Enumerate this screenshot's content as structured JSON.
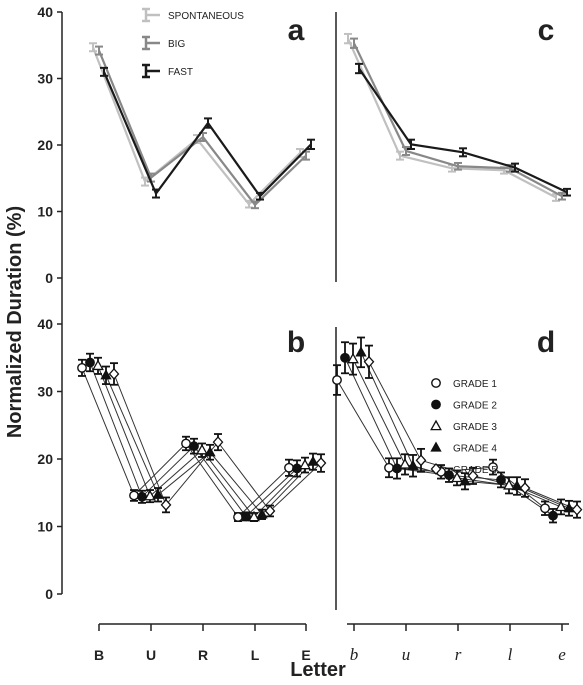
{
  "y_axis_title": "Normalized Duration (%)",
  "x_axis_title": "Letter",
  "chart_data": [
    {
      "panel": "a",
      "type": "line",
      "categories": [
        "B",
        "U",
        "R",
        "L",
        "E"
      ],
      "ylim": [
        0,
        40
      ],
      "yticks": [
        0,
        10,
        20,
        30,
        40
      ],
      "legend_position": "top-left",
      "series": [
        {
          "name": "SPONTANEOUS",
          "color": "#c0c0c0",
          "values": [
            34.7,
            14.5,
            20.9,
            11.1,
            18.8
          ],
          "errors": [
            0.6,
            0.6,
            0.6,
            0.5,
            0.6
          ]
        },
        {
          "name": "BIG",
          "color": "#888888",
          "values": [
            34.2,
            15.1,
            21.2,
            11.0,
            18.4
          ],
          "errors": [
            0.6,
            0.6,
            0.6,
            0.5,
            0.6
          ]
        },
        {
          "name": "FAST",
          "color": "#1a1a1a",
          "values": [
            31.0,
            12.7,
            23.3,
            12.3,
            20.1
          ],
          "errors": [
            0.6,
            0.6,
            0.7,
            0.5,
            0.7
          ]
        }
      ]
    },
    {
      "panel": "c",
      "type": "line",
      "categories": [
        "b",
        "u",
        "r",
        "l",
        "e"
      ],
      "ylim": [
        0,
        40
      ],
      "series": [
        {
          "name": "SPONTANEOUS",
          "color": "#c0c0c0",
          "values": [
            36.0,
            18.4,
            16.5,
            16.2,
            12.1
          ],
          "errors": [
            0.7,
            0.6,
            0.5,
            0.5,
            0.5
          ]
        },
        {
          "name": "BIG",
          "color": "#888888",
          "values": [
            35.3,
            19.1,
            16.8,
            16.5,
            12.3
          ],
          "errors": [
            0.7,
            0.6,
            0.5,
            0.5,
            0.5
          ]
        },
        {
          "name": "FAST",
          "color": "#1a1a1a",
          "values": [
            31.5,
            20.1,
            18.9,
            16.6,
            12.9
          ],
          "errors": [
            0.7,
            0.7,
            0.6,
            0.6,
            0.5
          ]
        }
      ]
    },
    {
      "panel": "b",
      "type": "line",
      "categories": [
        "B",
        "U",
        "R",
        "L",
        "E"
      ],
      "ylim": [
        0,
        40
      ],
      "yticks": [
        0,
        10,
        20,
        30,
        40
      ],
      "series": [
        {
          "name": "GRADE 1",
          "marker": "circle-open",
          "values": [
            33.5,
            14.6,
            22.3,
            11.4,
            18.7
          ],
          "errors": [
            1.2,
            0.8,
            1.0,
            0.6,
            1.2
          ]
        },
        {
          "name": "GRADE 2",
          "marker": "circle-filled",
          "values": [
            34.3,
            14.4,
            21.9,
            11.5,
            18.6
          ],
          "errors": [
            1.3,
            0.9,
            1.1,
            0.6,
            1.2
          ]
        },
        {
          "name": "GRADE 3",
          "marker": "triangle-open",
          "values": [
            33.8,
            14.5,
            21.3,
            11.4,
            19.1
          ],
          "errors": [
            1.2,
            0.9,
            1.0,
            0.6,
            1.1
          ]
        },
        {
          "name": "GRADE 4",
          "marker": "triangle-filled",
          "values": [
            32.4,
            14.7,
            21.0,
            11.8,
            19.6
          ],
          "errors": [
            1.3,
            1.0,
            1.1,
            0.7,
            1.2
          ]
        },
        {
          "name": "GRADE 5",
          "marker": "diamond-open",
          "values": [
            32.6,
            13.2,
            22.5,
            12.3,
            19.4
          ],
          "errors": [
            1.6,
            1.1,
            1.2,
            0.8,
            1.3
          ]
        }
      ]
    },
    {
      "panel": "d",
      "type": "line",
      "categories": [
        "b",
        "u",
        "r",
        "l",
        "e"
      ],
      "ylim": [
        0,
        40
      ],
      "legend_position": "top-right",
      "series": [
        {
          "name": "GRADE 1",
          "marker": "circle-open",
          "values": [
            31.7,
            18.7,
            18.1,
            18.8,
            12.7
          ],
          "errors": [
            2.2,
            1.4,
            1.0,
            1.1,
            1.0
          ]
        },
        {
          "name": "GRADE 2",
          "marker": "circle-filled",
          "values": [
            35.0,
            18.6,
            17.6,
            16.9,
            11.6
          ],
          "errors": [
            2.3,
            1.5,
            1.0,
            1.1,
            1.0
          ]
        },
        {
          "name": "GRADE 3",
          "marker": "triangle-open",
          "values": [
            34.8,
            19.2,
            17.2,
            16.1,
            12.9
          ],
          "errors": [
            2.3,
            1.5,
            1.1,
            1.2,
            1.1
          ]
        },
        {
          "name": "GRADE 4",
          "marker": "triangle-filled",
          "values": [
            35.8,
            19.0,
            16.7,
            16.0,
            12.7
          ],
          "errors": [
            2.2,
            1.6,
            1.2,
            1.3,
            1.1
          ]
        },
        {
          "name": "GRADE 5",
          "marker": "diamond-open",
          "values": [
            34.4,
            19.8,
            17.5,
            15.7,
            12.5
          ],
          "errors": [
            2.4,
            1.7,
            1.2,
            1.3,
            1.2
          ]
        }
      ]
    }
  ]
}
